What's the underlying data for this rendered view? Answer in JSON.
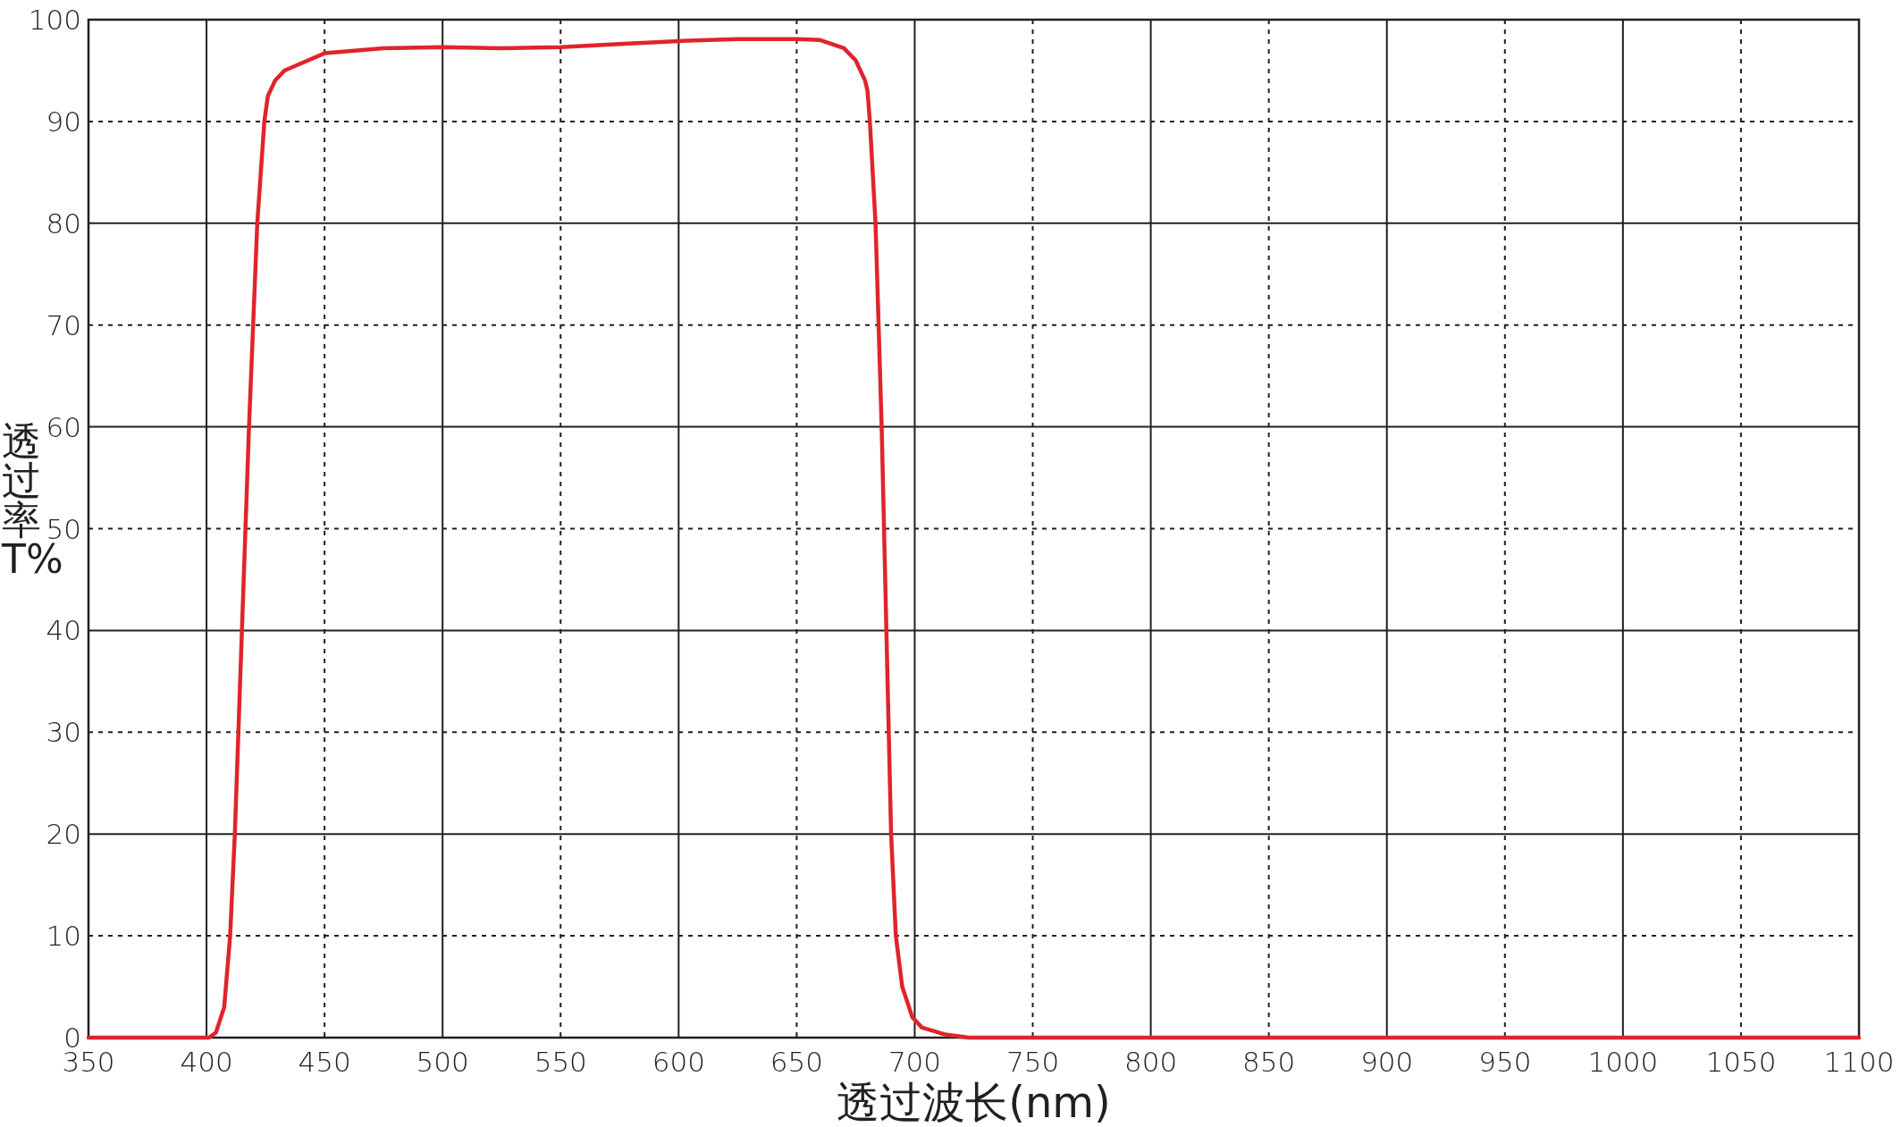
{
  "chart_data": {
    "type": "line",
    "xlabel": "透过波长(nm)",
    "ylabel": "透过率T%",
    "xlim": [
      350,
      1100
    ],
    "ylim": [
      0,
      100
    ],
    "xticks": [
      350,
      400,
      450,
      500,
      550,
      600,
      650,
      700,
      750,
      800,
      850,
      900,
      950,
      1000,
      1050,
      1100
    ],
    "yticks": [
      0,
      10,
      20,
      30,
      40,
      50,
      60,
      70,
      80,
      90,
      100
    ],
    "grid": true,
    "marker": "none",
    "line_style": "solid",
    "series": [
      {
        "color": "#e0242c",
        "x": [
          350,
          380,
          398,
          401,
          404,
          407.5,
          410,
          412,
          415,
          418,
          421.5,
          424.5,
          426,
          429,
          433,
          438,
          450,
          475,
          500,
          525,
          550,
          575,
          600,
          625,
          650,
          660,
          670,
          675,
          677,
          679,
          680,
          681,
          683.4,
          686,
          688,
          690,
          692,
          694.7,
          699,
          703,
          713,
          723,
          800,
          900,
          1000,
          1100
        ],
        "values": [
          0,
          0,
          0,
          0,
          0.5,
          3,
          10,
          20,
          40,
          60,
          80,
          90,
          92.5,
          94,
          95,
          95.5,
          96.7,
          97.2,
          97.3,
          97.2,
          97.3,
          97.6,
          97.9,
          98.1,
          98.1,
          98,
          97.2,
          96,
          95,
          94,
          93,
          90,
          80,
          60,
          40,
          20,
          10,
          5,
          2,
          1,
          0.3,
          0,
          0,
          0,
          0,
          0
        ]
      }
    ]
  }
}
